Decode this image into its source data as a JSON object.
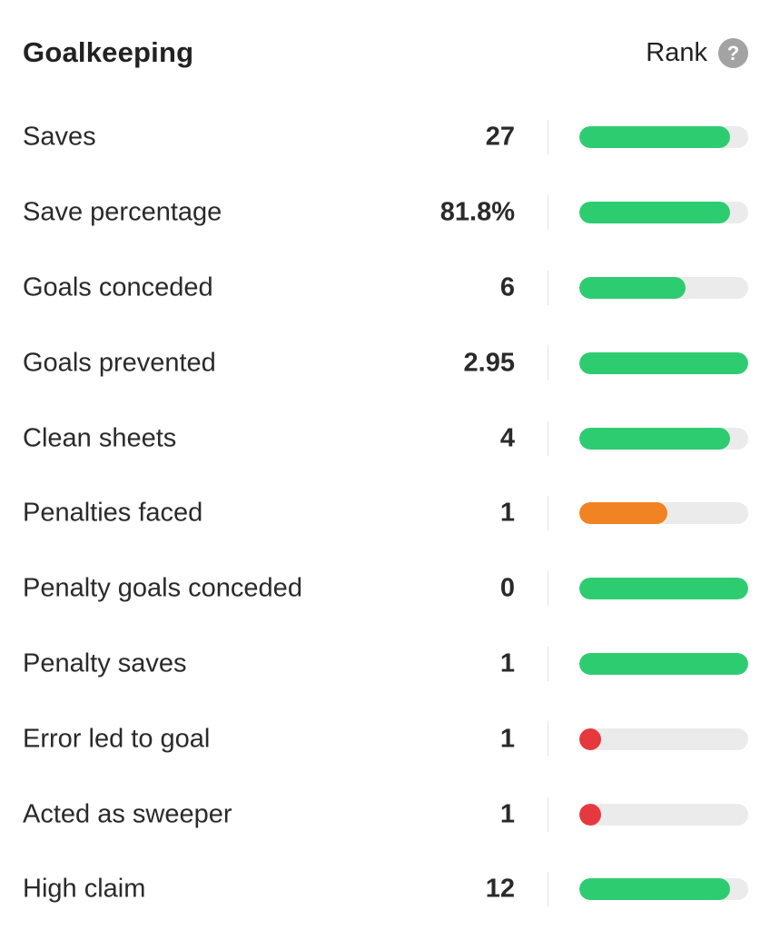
{
  "header": {
    "title": "Goalkeeping",
    "rank_label": "Rank",
    "help_glyph": "?",
    "help_icon": "question-circle-icon"
  },
  "colors": {
    "good": "#2ecc71",
    "average": "#f28322",
    "poor": "#e6393d",
    "track": "#ebebeb"
  },
  "stats": [
    {
      "label": "Saves",
      "value": "27",
      "rank_fraction": 0.89,
      "rating": "good"
    },
    {
      "label": "Save percentage",
      "value": "81.8%",
      "rank_fraction": 0.89,
      "rating": "good"
    },
    {
      "label": "Goals conceded",
      "value": "6",
      "rank_fraction": 0.63,
      "rating": "good"
    },
    {
      "label": "Goals prevented",
      "value": "2.95",
      "rank_fraction": 1.0,
      "rating": "good"
    },
    {
      "label": "Clean sheets",
      "value": "4",
      "rank_fraction": 0.89,
      "rating": "good"
    },
    {
      "label": "Penalties faced",
      "value": "1",
      "rank_fraction": 0.52,
      "rating": "average"
    },
    {
      "label": "Penalty goals conceded",
      "value": "0",
      "rank_fraction": 1.0,
      "rating": "good"
    },
    {
      "label": "Penalty saves",
      "value": "1",
      "rank_fraction": 1.0,
      "rating": "good"
    },
    {
      "label": "Error led to goal",
      "value": "1",
      "rank_fraction": 0.07,
      "rating": "poor"
    },
    {
      "label": "Acted as sweeper",
      "value": "1",
      "rank_fraction": 0.07,
      "rating": "poor"
    },
    {
      "label": "High claim",
      "value": "12",
      "rank_fraction": 0.89,
      "rating": "good"
    }
  ]
}
